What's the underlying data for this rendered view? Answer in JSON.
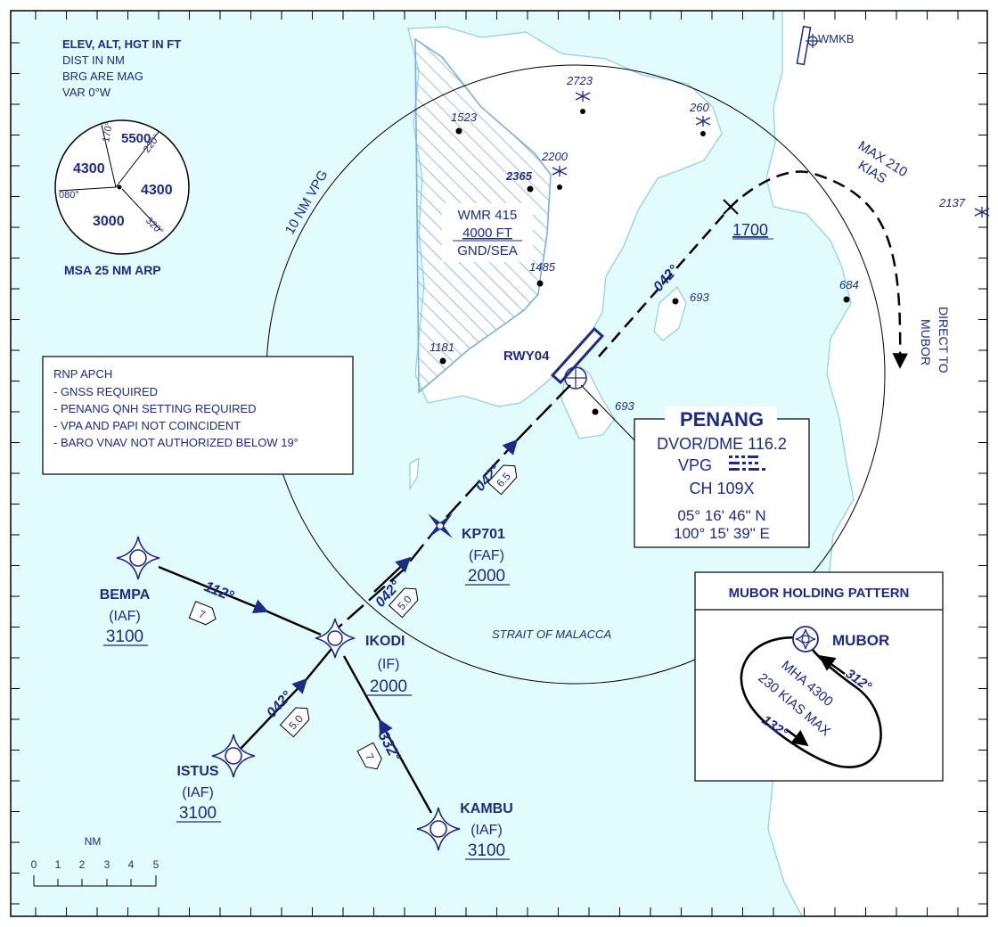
{
  "notes": {
    "units_line1": "ELEV, ALT, HGT IN FT",
    "units_line2": "DIST IN NM",
    "units_line3": "BRG ARE MAG",
    "units_line4": "VAR 0°W"
  },
  "msa": {
    "label": "MSA 25 NM ARP",
    "sector_top": "5500",
    "sector_left": "4300",
    "sector_right": "4300",
    "sector_bottom": "3000",
    "brg_170": "170°",
    "brg_220": "220°",
    "brg_080": "080°",
    "brg_320": "320°"
  },
  "airport_ref": "WMKB",
  "circle_label": "10 NM VPG",
  "restricted_area": {
    "line1": "WMR 415",
    "line2": "4000 FT",
    "line3": "GND/SEA"
  },
  "elevations": {
    "e2723": "2723",
    "e260": "260",
    "e1523": "1523",
    "e2200": "2200",
    "e2365": "2365",
    "e1485": "1485",
    "e1181": "1181",
    "e693a": "693",
    "e693b": "693",
    "e684": "684",
    "e2137": "2137"
  },
  "missed_approach": {
    "speed_line1": "MAX 210",
    "speed_line2": "KIAS",
    "altitude": "1700",
    "track": "042°",
    "direct_line1": "DIRECT TO",
    "direct_line2": "MUBOR"
  },
  "runway": "RWY04",
  "rnp_box": {
    "title": "RNP APCH",
    "line1": "- GNSS REQUIRED",
    "line2": "- PENANG QNH SETTING REQUIRED",
    "line3": "- VPA AND PAPI NOT COINCIDENT",
    "line4": "- BARO VNAV NOT AUTHORIZED BELOW 19°"
  },
  "navaid": {
    "name": "PENANG",
    "type_freq": "DVOR/DME 116.2",
    "ident": "VPG",
    "channel": "CH 109X",
    "lat": "05° 16' 46\" N",
    "lon": "100° 15' 39\" E"
  },
  "fixes": {
    "kp701": {
      "name": "KP701",
      "role": "(FAF)",
      "alt": "2000"
    },
    "ikodi": {
      "name": "IKODI",
      "role": "(IF)",
      "alt": "2000"
    },
    "bempa": {
      "name": "BEMPA",
      "role": "(IAF)",
      "alt": "3100"
    },
    "istus": {
      "name": "ISTUS",
      "role": "(IAF)",
      "alt": "3100"
    },
    "kambu": {
      "name": "KAMBU",
      "role": "(IAF)",
      "alt": "3100"
    }
  },
  "legs": {
    "final_track": "042°",
    "final_dist": "6.5",
    "int_track": "042°",
    "int_dist": "5.0",
    "istus_track": "042°",
    "istus_dist": "5.0",
    "bempa_track": "112°",
    "bempa_dist": "7",
    "kambu_track": "332°",
    "kambu_dist": "7"
  },
  "water_label": "STRAIT OF MALACCA",
  "holding": {
    "title": "MUBOR HOLDING PATTERN",
    "fix": "MUBOR",
    "inbound": "312°",
    "outbound": "132°",
    "mha": "MHA 4300",
    "speed": "230 KIAS MAX"
  },
  "scale": {
    "unit": "NM",
    "t0": "0",
    "t1": "1",
    "t2": "2",
    "t3": "3",
    "t4": "4",
    "t5": "5"
  },
  "colors": {
    "navy": "#1c2b86",
    "water": "#e2fbfd",
    "land_outline": "#8ecfe0",
    "restricted_hatch": "#7ab0e0"
  }
}
